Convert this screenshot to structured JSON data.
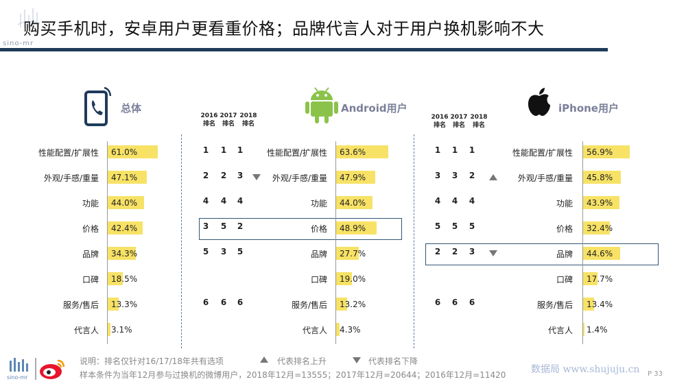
{
  "title": "购买手机时，安卓用户更看重价格；品牌代言人对于用户换机影响不大",
  "brand_text": "sino-mr",
  "colors": {
    "bar": "#f7e266",
    "rule": "#1f3a5a",
    "section_title": "#7b7f99"
  },
  "icons": {
    "overall": "phone-call-icon",
    "android": "android-icon",
    "iphone": "apple-icon"
  },
  "rank_headers": [
    "2016\n排名",
    "2017\n排名",
    "2018\n排名"
  ],
  "chart_data": [
    {
      "type": "bar",
      "title": "总体",
      "orientation": "horizontal",
      "categories": [
        "性能配置/扩展性",
        "外观/手感/重量",
        "功能",
        "价格",
        "品牌",
        "口碑",
        "服务/售后",
        "代言人"
      ],
      "values": [
        61.0,
        47.1,
        44.0,
        42.4,
        34.3,
        18.5,
        13.3,
        3.1
      ],
      "labels": [
        "61.0%",
        "47.1%",
        "44.0%",
        "42.4%",
        "34.3%",
        "18.5%",
        "13.3%",
        "3.1%"
      ],
      "unit": "%",
      "xlim": [
        0,
        100
      ]
    },
    {
      "type": "bar",
      "title": "Android用户",
      "orientation": "horizontal",
      "categories": [
        "性能配置/扩展性",
        "外观/手感/重量",
        "功能",
        "价格",
        "品牌",
        "口碑",
        "服务/售后",
        "代言人"
      ],
      "values": [
        63.6,
        47.9,
        44.0,
        48.9,
        27.7,
        19.0,
        13.2,
        4.3
      ],
      "labels": [
        "63.6%",
        "47.9%",
        "44.0%",
        "48.9%",
        "27.7%",
        "19.0%",
        "13.2%",
        "4.3%"
      ],
      "unit": "%",
      "xlim": [
        0,
        100
      ],
      "ranks": [
        [
          "1",
          "1",
          "1"
        ],
        [
          "2",
          "2",
          "3"
        ],
        [
          "4",
          "4",
          "4"
        ],
        [
          "3",
          "5",
          "2"
        ],
        [
          "5",
          "3",
          "5"
        ],
        [
          "",
          "",
          ""
        ],
        [
          "6",
          "6",
          "6"
        ],
        [
          "",
          "",
          ""
        ]
      ],
      "trend": [
        "",
        "down",
        "",
        "",
        "",
        "",
        "",
        ""
      ],
      "highlight_row": "价格"
    },
    {
      "type": "bar",
      "title": "iPhone用户",
      "orientation": "horizontal",
      "categories": [
        "性能配置/扩展性",
        "外观/手感/重量",
        "功能",
        "价格",
        "品牌",
        "口碑",
        "服务/售后",
        "代言人"
      ],
      "values": [
        56.9,
        45.8,
        43.9,
        32.4,
        44.6,
        17.7,
        13.4,
        1.4
      ],
      "labels": [
        "56.9%",
        "45.8%",
        "43.9%",
        "32.4%",
        "44.6%",
        "17.7%",
        "13.4%",
        "1.4%"
      ],
      "unit": "%",
      "xlim": [
        0,
        100
      ],
      "ranks": [
        [
          "1",
          "1",
          "1"
        ],
        [
          "3",
          "3",
          "2"
        ],
        [
          "4",
          "4",
          "4"
        ],
        [
          "5",
          "5",
          "5"
        ],
        [
          "2",
          "2",
          "3"
        ],
        [
          "",
          "",
          ""
        ],
        [
          "6",
          "6",
          "6"
        ],
        [
          "",
          "",
          ""
        ]
      ],
      "trend": [
        "",
        "up",
        "",
        "",
        "down",
        "",
        "",
        ""
      ],
      "highlight_row": "品牌"
    }
  ],
  "footer": {
    "note_prefix": "说明：排名仅针对16/17/18年共有选项",
    "legend_up": "代表排名上升",
    "legend_down": "代表排名下降",
    "sample": "样本条件为当年12月参与过换机的微博用户，2018年12月=13555；2017年12月=20644；2016年12月=11420",
    "watermark": "数据局  www.shujuju.cn",
    "page": "P 33"
  }
}
